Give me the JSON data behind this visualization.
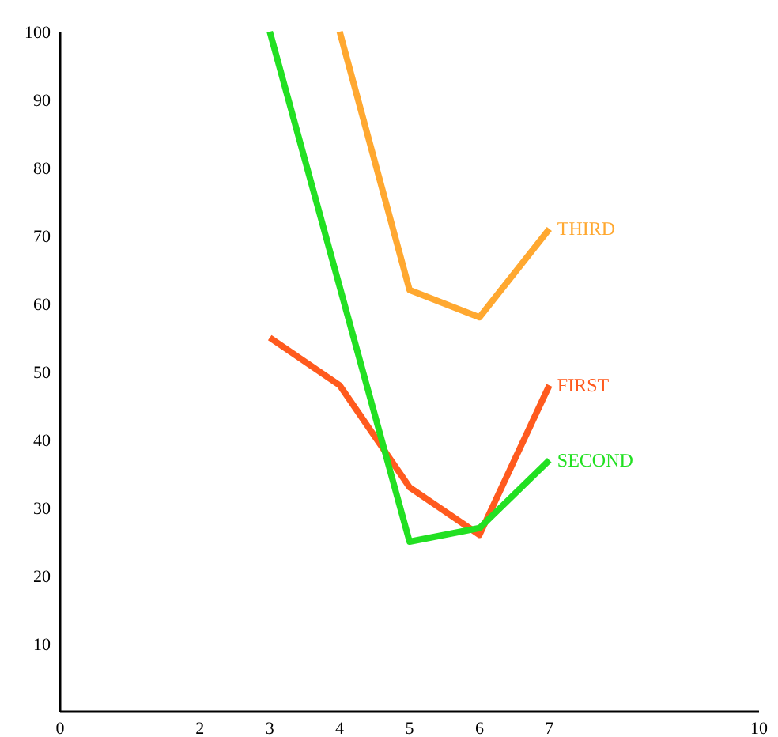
{
  "chart_data": {
    "type": "line",
    "xlim": [
      0,
      10
    ],
    "ylim": [
      0,
      100
    ],
    "xticks": [
      0,
      2,
      3,
      4,
      5,
      6,
      7,
      10
    ],
    "yticks": [
      10,
      20,
      30,
      40,
      50,
      60,
      70,
      80,
      90,
      100
    ],
    "grid": false,
    "marker": "none",
    "line_style": "solid",
    "series": [
      {
        "name": "FIRST",
        "color": "#ff5a1e",
        "x": [
          3,
          4,
          5,
          6,
          7
        ],
        "values": [
          55,
          48,
          33,
          26,
          48
        ]
      },
      {
        "name": "SECOND",
        "color": "#22e022",
        "x": [
          3,
          5,
          6,
          7
        ],
        "values": [
          100,
          25,
          27,
          37
        ]
      },
      {
        "name": "THIRD",
        "color": "#ffa830",
        "x": [
          4,
          5,
          6,
          7
        ],
        "values": [
          100,
          62,
          58,
          71
        ]
      }
    ]
  }
}
